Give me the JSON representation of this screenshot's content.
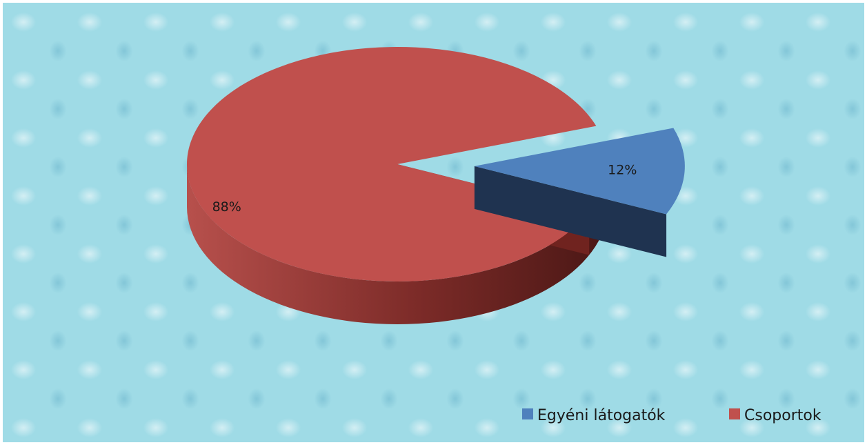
{
  "chart_data": {
    "type": "pie",
    "title": "",
    "legend_position": "bottom-right",
    "slices": [
      {
        "label": "Egyéni látogatók",
        "value": 12,
        "display": "12%",
        "color": "#4f81bd",
        "side_color": "#1f3350",
        "exploded": true
      },
      {
        "label": "Csoportok",
        "value": 88,
        "display": "88%",
        "color": "#c0504d",
        "side_color": "#6e2321",
        "exploded": false
      }
    ]
  }
}
